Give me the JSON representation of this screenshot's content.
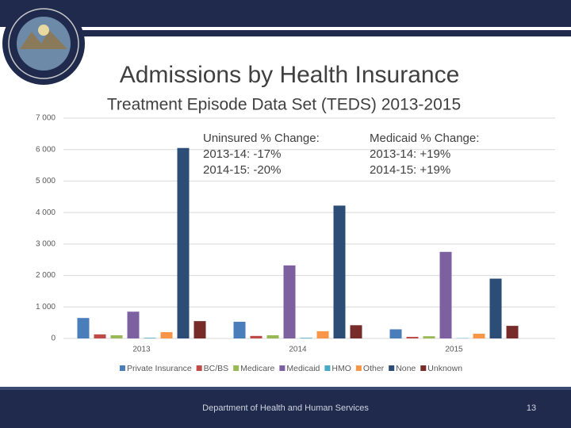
{
  "chart_data": {
    "type": "bar",
    "title": "Admissions by Health Insurance",
    "subtitle": "Treatment Episode Data Set (TEDS) 2013-2015",
    "annotations": [
      [
        "Uninsured % Change:",
        "2013-14: -17%",
        "2014-15: -20%"
      ],
      [
        "Medicaid % Change:",
        "2013-14: +19%",
        "2014-15: +19%"
      ]
    ],
    "categories": [
      "2013",
      "2014",
      "2015"
    ],
    "series": [
      {
        "name": "Private Insurance",
        "color": "#4a7ebb",
        "values": [
          650,
          530,
          290
        ]
      },
      {
        "name": "BC/BS",
        "color": "#be4b48",
        "values": [
          130,
          80,
          50
        ]
      },
      {
        "name": "Medicare",
        "color": "#98b954",
        "values": [
          100,
          100,
          70
        ]
      },
      {
        "name": "Medicaid",
        "color": "#7d60a0",
        "values": [
          850,
          2320,
          2750
        ]
      },
      {
        "name": "HMO",
        "color": "#46aac5",
        "values": [
          20,
          20,
          10
        ]
      },
      {
        "name": "Other",
        "color": "#f79646",
        "values": [
          200,
          230,
          150
        ]
      },
      {
        "name": "None",
        "color": "#2c4d75",
        "values": [
          6050,
          4220,
          1900
        ]
      },
      {
        "name": "Unknown",
        "color": "#772c2a",
        "values": [
          550,
          420,
          400
        ]
      }
    ],
    "ylim": [
      0,
      7000
    ],
    "yticks": [
      0,
      {
        "value": 1000,
        "label": "1 000"
      },
      {
        "value": 2000,
        "label": "2 000"
      },
      {
        "value": 3000,
        "label": "3 000"
      },
      {
        "value": 4000,
        "label": "4 000"
      },
      {
        "value": 5000,
        "label": "5 000"
      },
      {
        "value": 6000,
        "label": "6 000"
      },
      {
        "value": 7000,
        "label": "7 000"
      }
    ],
    "grid": true
  },
  "footer": {
    "department": "Department of Health and Human Services",
    "page": 13
  }
}
